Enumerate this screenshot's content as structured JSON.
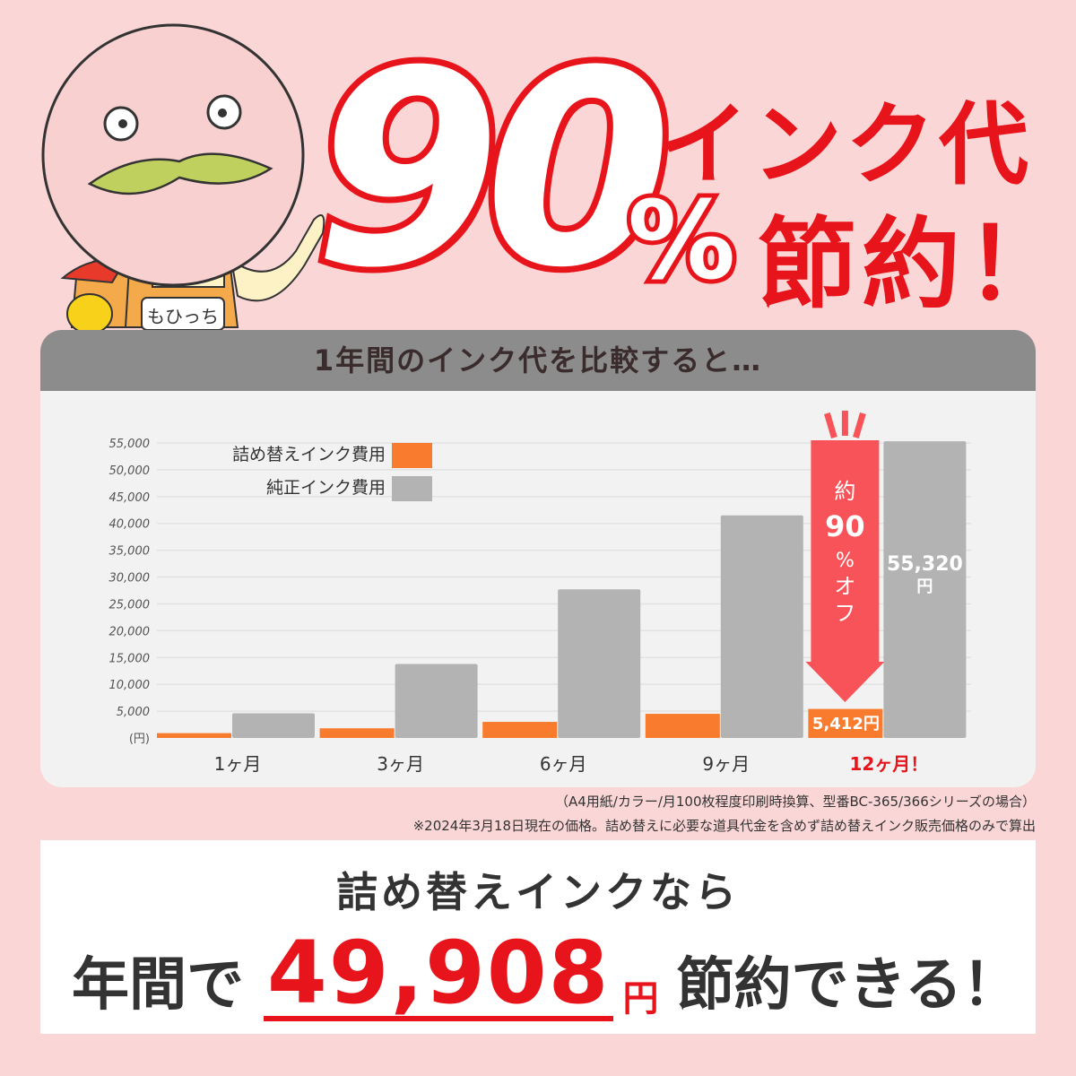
{
  "headline": {
    "big_number": "90",
    "percent": "%",
    "line1": "インク代",
    "line2": "節約！"
  },
  "mascot": {
    "name_tag": "もひっち"
  },
  "chart_header": "1年間のインク代を比較すると…",
  "chart_data": {
    "type": "bar",
    "categories": [
      "1ヶ月",
      "3ヶ月",
      "6ヶ月",
      "9ヶ月",
      "12ヶ月！"
    ],
    "series": [
      {
        "name": "詰め替えインク費用",
        "color": "#f97b2d",
        "values": [
          900,
          1800,
          3000,
          4500,
          5412
        ]
      },
      {
        "name": "純正インク費用",
        "color": "#b3b3b3",
        "values": [
          4600,
          13800,
          27700,
          41500,
          55320
        ]
      }
    ],
    "ylabel": "(円)",
    "yticks": [
      "5,000",
      "10,000",
      "15,000",
      "20,000",
      "25,000",
      "30,000",
      "35,000",
      "40,000",
      "45,000",
      "50,000",
      "55,000"
    ],
    "ylim": [
      0,
      55000
    ],
    "grid": true,
    "legend": "top-left",
    "highlight_color": "#e8141b",
    "annotations": {
      "refill_12": "5,412円",
      "genuine_12_value": "55,320",
      "genuine_12_unit": "円",
      "arrow_lines": [
        "約",
        "90",
        "%",
        "オ",
        "フ"
      ],
      "arrow_color": "#f75358"
    }
  },
  "notes": [
    "（A4用紙/カラー/月100枚程度印刷時換算、型番BC-365/366シリーズの場合）",
    "※2024年3月18日現在の価格。詰め替えに必要な道具代金を含めず詰め替えインク販売価格のみで算出"
  ],
  "bottom": {
    "line1": "詰め替えインクなら",
    "prefix": "年間で",
    "amount": "49,908",
    "unit": "円",
    "suffix": "節約できる！"
  }
}
